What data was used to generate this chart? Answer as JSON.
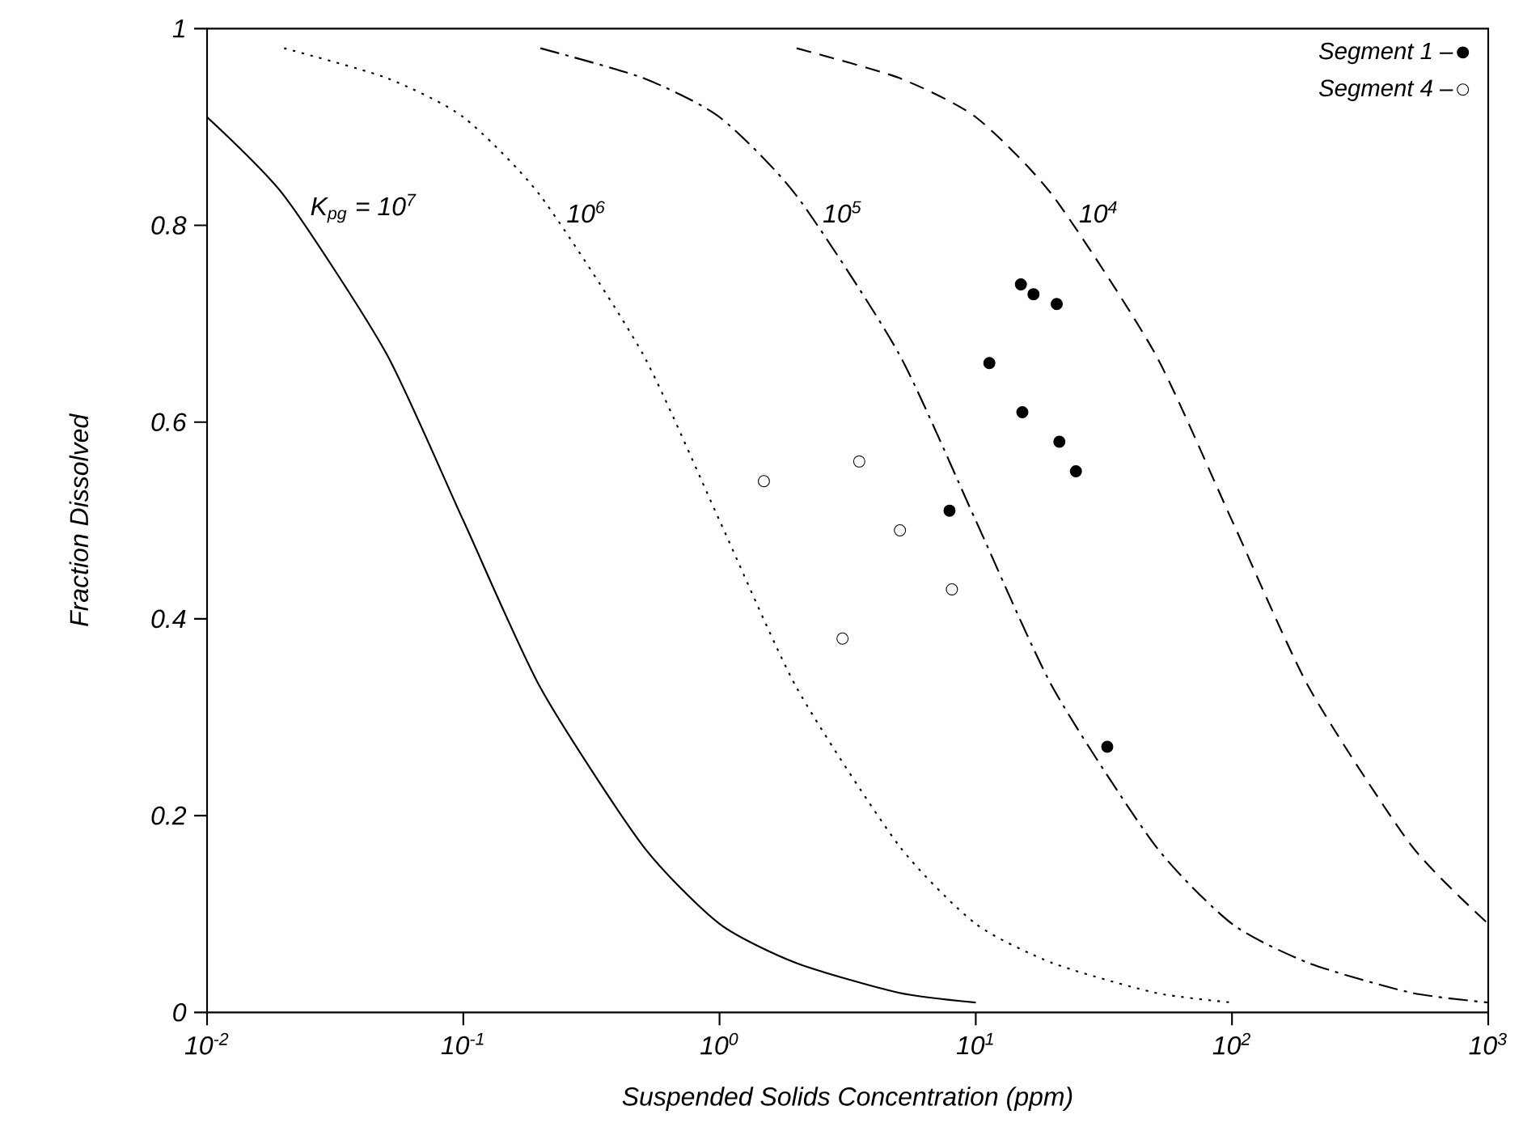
{
  "chart_data": {
    "type": "line",
    "xlabel": "Suspended Solids Concentration (ppm)",
    "ylabel": "Fraction Dissolved",
    "log": "x",
    "xlim": [
      0.01,
      1000
    ],
    "ylim": [
      0,
      1
    ],
    "xticks": [
      {
        "value": 0.01,
        "label": "10$^{-2}$"
      },
      {
        "value": 0.1,
        "label": "10$^{-1}$"
      },
      {
        "value": 1,
        "label": "10$^{0}$"
      },
      {
        "value": 10,
        "label": "10$^{1}$"
      },
      {
        "value": 100,
        "label": "10$^{2}$"
      },
      {
        "value": 1000,
        "label": "10$^{3}$"
      }
    ],
    "yticks": [
      0,
      0.2,
      0.4,
      0.6,
      0.8,
      1
    ],
    "legend": "top right",
    "grid": false,
    "series": [
      {
        "name": "K$_{pg}$ = 10$^{7}$",
        "type": "line",
        "color": "#000000",
        "line_style": "solid",
        "marker": "none",
        "x": [
          0.01,
          0.02,
          0.05,
          0.1,
          0.2,
          0.5,
          1,
          2,
          5,
          10
        ],
        "values": [
          0.91,
          0.83,
          0.67,
          0.5,
          0.33,
          0.17,
          0.09,
          0.05,
          0.02,
          0.01
        ]
      },
      {
        "name": "10$^{6}$",
        "type": "line",
        "color": "#000000",
        "line_style": "dotted",
        "marker": "none",
        "x": [
          0.02,
          0.05,
          0.1,
          0.2,
          0.5,
          1,
          2,
          5,
          10,
          20,
          50,
          100
        ],
        "values": [
          0.98,
          0.95,
          0.91,
          0.83,
          0.67,
          0.5,
          0.33,
          0.17,
          0.09,
          0.05,
          0.02,
          0.01
        ]
      },
      {
        "name": "10$^{5}$",
        "type": "line",
        "color": "#000000",
        "line_style": "dashdot",
        "marker": "none",
        "x": [
          0.2,
          0.5,
          1,
          2,
          5,
          10,
          20,
          50,
          100,
          200,
          500,
          1000
        ],
        "values": [
          0.98,
          0.95,
          0.91,
          0.83,
          0.67,
          0.5,
          0.33,
          0.17,
          0.09,
          0.05,
          0.02,
          0.01
        ]
      },
      {
        "name": "10$^{4}$",
        "type": "line",
        "color": "#000000",
        "line_style": "dashed",
        "marker": "none",
        "x": [
          2,
          5,
          10,
          20,
          50,
          100,
          200,
          500,
          1000
        ],
        "values": [
          0.98,
          0.95,
          0.91,
          0.83,
          0.67,
          0.5,
          0.33,
          0.17,
          0.09
        ]
      },
      {
        "name": "Segment 1 –",
        "type": "scatter",
        "color": "#000000",
        "marker": "circle",
        "x": [
          15.0,
          16.8,
          20.7,
          11.3,
          15.2,
          21.2,
          24.6,
          7.9,
          32.6
        ],
        "values": [
          0.74,
          0.73,
          0.72,
          0.66,
          0.61,
          0.58,
          0.55,
          0.51,
          0.27
        ]
      },
      {
        "name": "Segment 4 –",
        "type": "scatter",
        "color": "#000000",
        "marker": "open circle",
        "x": [
          1.49,
          3.51,
          5.06,
          8.07,
          3.02
        ],
        "values": [
          0.54,
          0.56,
          0.49,
          0.43,
          0.38
        ]
      }
    ]
  }
}
